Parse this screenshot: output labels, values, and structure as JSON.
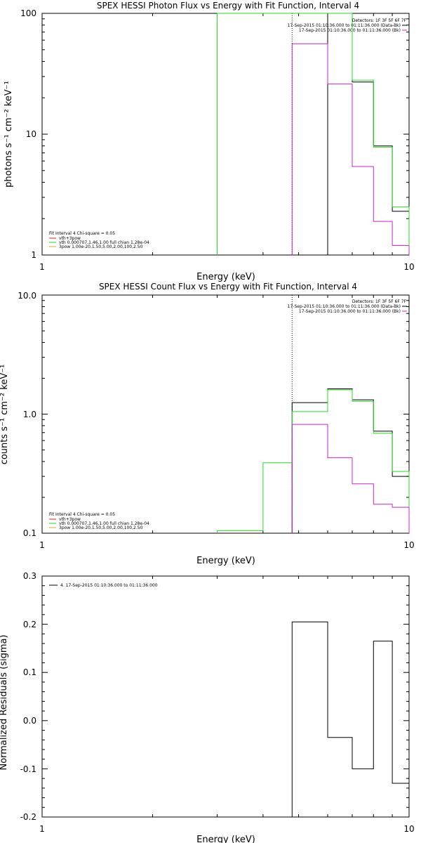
{
  "colors": {
    "axis": "#000000",
    "data": "#000000",
    "model": "#22dd22",
    "background": "#cc22cc",
    "vth_legend": "#dd2222",
    "spow_legend": "#ddaa22"
  },
  "chart_data": [
    {
      "type": "line",
      "title": "SPEX HESSI Photon Flux vs Energy with Fit Function, Interval 4",
      "xlabel": "Energy (keV)",
      "ylabel": "photons s⁻¹ cm⁻² keV⁻¹",
      "xscale": "log",
      "yscale": "log",
      "xlim": [
        1,
        10
      ],
      "ylim": [
        1,
        100
      ],
      "xticks": [
        "1",
        "10"
      ],
      "yticks": [
        "1",
        "10",
        "100"
      ],
      "info_lines": [
        "Detectors: 1F 3F 5F 6F 7F",
        "17-Sep-2015 01:10:36.000 to 01:11:36.000 (Data-Bk)",
        "17-Sep-2015 01:10:36.000 to 01:11:36.000 (Bk)"
      ],
      "fit_lines": [
        "Fit Interval  4    Chi-square = 0.05",
        "vth+3pow",
        "vth 0.000707,1.46,1.00  full chian 1.28e-04",
        "3pow 1.00e-20,1.50,5.00,2.00,100,2.50"
      ],
      "fit_range_keV": 4.8,
      "series": [
        {
          "name": "Data-Bk",
          "color": "#000000",
          "edges": [
            6.0,
            7.0,
            8.0,
            9.0,
            10.0
          ],
          "values": [
            100,
            27,
            8,
            2.3
          ]
        },
        {
          "name": "vth+3pow",
          "color": "#22dd22",
          "edges": [
            3.0,
            4.8,
            6.0,
            7.0,
            8.0,
            9.0,
            10.0
          ],
          "values": [
            100,
            100,
            100,
            28,
            7.8,
            2.5
          ]
        },
        {
          "name": "Bk",
          "color": "#cc22cc",
          "edges": [
            4.8,
            6.0,
            7.0,
            8.0,
            9.0,
            10.0
          ],
          "values": [
            56,
            26,
            5.4,
            1.9,
            1.2
          ]
        }
      ]
    },
    {
      "type": "line",
      "title": "SPEX HESSI Count Flux vs Energy with Fit Function, Interval 4",
      "xlabel": "Energy (keV)",
      "ylabel": "counts s⁻¹ cm⁻² keV⁻¹",
      "xscale": "log",
      "yscale": "log",
      "xlim": [
        1,
        10
      ],
      "ylim": [
        0.1,
        10
      ],
      "xticks": [
        "1",
        "10"
      ],
      "yticks": [
        "0.1",
        "1.0",
        "10.0"
      ],
      "info_lines": [
        "Detectors: 1F 3F 5F 6F 7F",
        "17-Sep-2015 01:10:36.000 to 01:11:36.000 (Data-Bk)",
        "17-Sep-2015 01:10:36.000 to 01:11:36.000 (Bk)"
      ],
      "fit_lines": [
        "Fit Interval  4    Chi-square = 0.05",
        "vth+3pow",
        "vth 0.000707,1.46,1.00  full chian 1.28e-04",
        "3pow 1.00e-20,1.50,5.00,2.00,100,2.50"
      ],
      "fit_range_keV": 4.8,
      "series": [
        {
          "name": "Data-Bk",
          "color": "#000000",
          "edges": [
            4.8,
            6.0,
            7.0,
            8.0,
            9.0,
            10.0
          ],
          "values": [
            1.25,
            1.63,
            1.32,
            0.72,
            0.3
          ]
        },
        {
          "name": "vth+3pow",
          "color": "#22dd22",
          "edges": [
            3.0,
            4.0,
            4.8,
            6.0,
            7.0,
            8.0,
            9.0,
            10.0
          ],
          "values": [
            0.105,
            0.39,
            1.05,
            1.6,
            1.28,
            0.69,
            0.33
          ]
        },
        {
          "name": "Bk",
          "color": "#cc22cc",
          "edges": [
            4.8,
            6.0,
            7.0,
            8.0,
            9.0,
            10.0
          ],
          "values": [
            0.82,
            0.43,
            0.26,
            0.175,
            0.165
          ]
        }
      ]
    },
    {
      "type": "line",
      "title": "",
      "xlabel": "Energy (keV)",
      "ylabel": "Normalized Residuals (sigma)",
      "xscale": "log",
      "yscale": "linear",
      "xlim": [
        1,
        10
      ],
      "ylim": [
        -0.2,
        0.3
      ],
      "xticks": [
        "1",
        "10"
      ],
      "yticks": [
        "-0.2",
        "-0.1",
        "0.0",
        "0.1",
        "0.2",
        "0.3"
      ],
      "legend": "4. 17-Sep-2015 01:10:36.000 to 01:11:36.000",
      "series": [
        {
          "name": "4. 17-Sep-2015 01:10:36.000 to 01:11:36.000",
          "color": "#000000",
          "edges": [
            4.8,
            6.0,
            7.0,
            8.0,
            9.0,
            10.0
          ],
          "values": [
            0.205,
            -0.035,
            -0.1,
            0.165,
            -0.13
          ]
        }
      ]
    }
  ]
}
